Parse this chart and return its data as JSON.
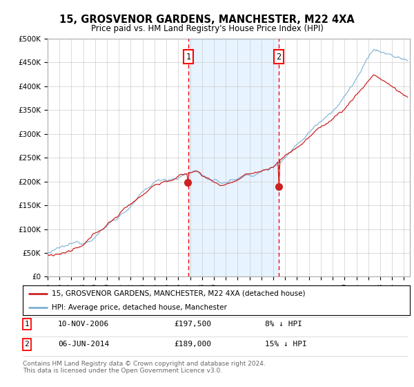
{
  "title": "15, GROSVENOR GARDENS, MANCHESTER, M22 4XA",
  "subtitle": "Price paid vs. HM Land Registry's House Price Index (HPI)",
  "ylim": [
    0,
    500000
  ],
  "xlim_start": 1995.0,
  "xlim_end": 2025.5,
  "hpi_color": "#7ab0d4",
  "price_color": "#cc2222",
  "vline1_x": 2006.86,
  "vline2_x": 2014.44,
  "purchase1": {
    "date": "10-NOV-2006",
    "price": 197500,
    "pct": "8%",
    "dir": "↓"
  },
  "purchase2": {
    "date": "06-JUN-2014",
    "price": 189000,
    "pct": "15%",
    "dir": "↓"
  },
  "legend_label1": "15, GROSVENOR GARDENS, MANCHESTER, M22 4XA (detached house)",
  "legend_label2": "HPI: Average price, detached house, Manchester",
  "footnote": "Contains HM Land Registry data © Crown copyright and database right 2024.\nThis data is licensed under the Open Government Licence v3.0.",
  "plot_bg_color": "#ffffff",
  "grid_color": "#cccccc",
  "span_color": "#ddeeff"
}
